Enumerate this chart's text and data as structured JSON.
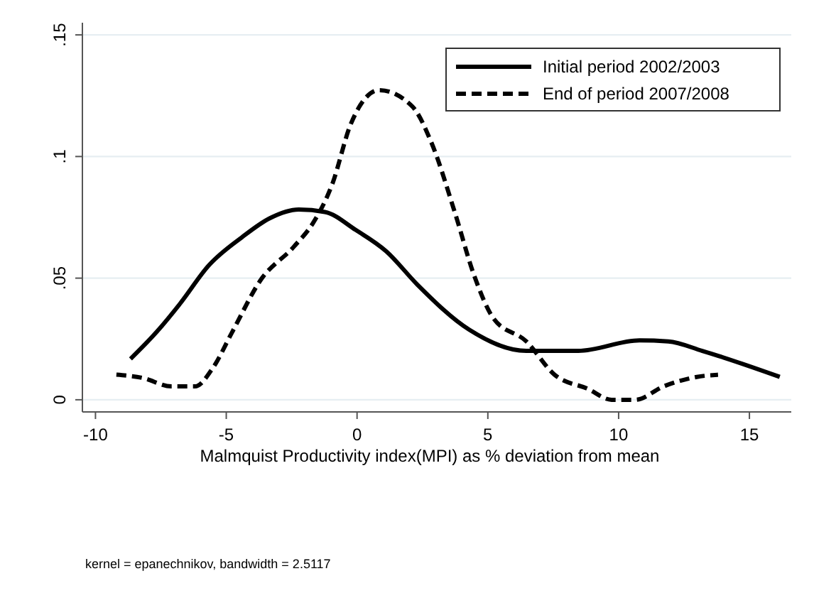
{
  "chart_data": {
    "type": "line",
    "xlabel": "Malmquist Productivity index(MPI) as % deviation from mean",
    "annotations": [
      "kernel = epanechnikov, bandwidth = 2.5117"
    ],
    "xlim": [
      -10.5,
      16.6
    ],
    "xticks": [
      -10,
      -5,
      0,
      5,
      10,
      15
    ],
    "ylim": [
      -0.005,
      0.155
    ],
    "yticks": [
      0,
      {
        "value": 0.05,
        "label": ".05"
      },
      {
        "value": 0.1,
        "label": ".1"
      },
      {
        "value": 0.15,
        "label": ".15"
      }
    ],
    "grid": "y",
    "legend": "top right",
    "series": [
      {
        "name": "Initial period 2002/2003",
        "color": "#000000",
        "line_style": "solid",
        "x": [
          -8.66,
          -7.66,
          -6.76,
          -5.67,
          -4.4,
          -3.32,
          -2.23,
          -1.23,
          -0.05,
          1.12,
          2.3,
          4.29,
          6.47,
          8.46,
          10.8,
          11.9,
          13.2,
          16.16
        ],
        "values": [
          0.0168,
          0.0279,
          0.0396,
          0.0552,
          0.0668,
          0.0747,
          0.0782,
          0.0772,
          0.0698,
          0.061,
          0.0474,
          0.0288,
          0.0201,
          0.0201,
          0.0244,
          0.024,
          0.0201,
          0.0094
        ]
      },
      {
        "name": "End of period 2007/2008",
        "color": "#000000",
        "line_style": "dashed",
        "x": [
          -9.2,
          -8.2,
          -7.1,
          -6.2,
          -5.5,
          -4.77,
          -3.68,
          -2.41,
          -1.68,
          -0.96,
          -0.23,
          0.85,
          2.12,
          2.84,
          3.75,
          4.47,
          5.2,
          6.47,
          7.55,
          8.82,
          9.73,
          10.64,
          11.72,
          12.99,
          13.8
        ],
        "values": [
          0.0103,
          0.009,
          0.0055,
          0.0055,
          0.0133,
          0.0279,
          0.0493,
          0.063,
          0.0727,
          0.0883,
          0.1136,
          0.1273,
          0.1205,
          0.1058,
          0.0766,
          0.0513,
          0.0337,
          0.024,
          0.0103,
          0.0045,
          0,
          0,
          0.0055,
          0.0094,
          0.0103
        ]
      }
    ]
  }
}
